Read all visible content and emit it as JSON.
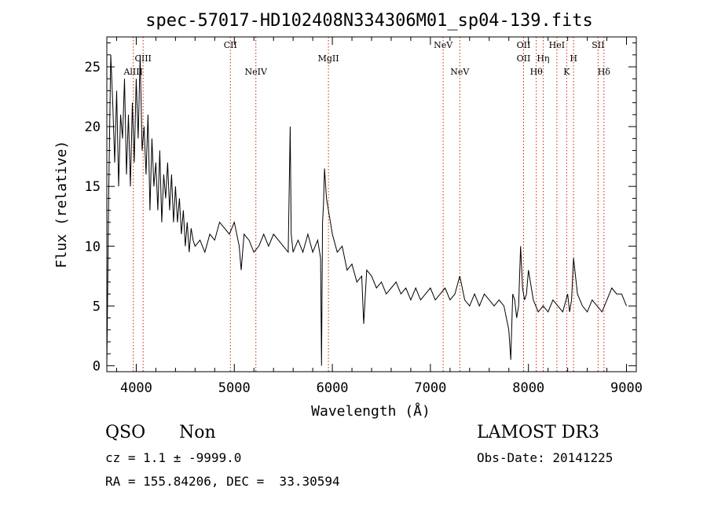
{
  "chart_data": {
    "type": "line",
    "title": "spec-57017-HD102408N334306M01_sp04-139.fits",
    "xlabel": "Wavelength (Å)",
    "ylabel": "Flux (relative)",
    "xlim": [
      3700,
      9100
    ],
    "ylim": [
      -0.5,
      27.5
    ],
    "xticks": [
      4000,
      5000,
      6000,
      7000,
      8000,
      9000
    ],
    "yticks": [
      0,
      5,
      10,
      15,
      20,
      25
    ],
    "grid": false,
    "line_color": "#000000",
    "marker_color": "#cc2200",
    "lines": [
      {
        "label": "AlIII",
        "x": 3970,
        "row": 3
      },
      {
        "label": "CIII",
        "x": 4070,
        "row": 2
      },
      {
        "label": "CII",
        "x": 4960,
        "row": 1
      },
      {
        "label": "NeIV",
        "x": 5220,
        "row": 3
      },
      {
        "label": "MgII",
        "x": 5960,
        "row": 2
      },
      {
        "label": "NeV",
        "x": 7130,
        "row": 1
      },
      {
        "label": "NeV",
        "x": 7300,
        "row": 3
      },
      {
        "label": "OII",
        "x": 7950,
        "row": 1
      },
      {
        "label": "OII",
        "x": 7950,
        "row": 2
      },
      {
        "label": "Hθ",
        "x": 8080,
        "row": 3
      },
      {
        "label": "Hη",
        "x": 8150,
        "row": 2
      },
      {
        "label": "HeI",
        "x": 8290,
        "row": 1
      },
      {
        "label": "K",
        "x": 8390,
        "row": 3
      },
      {
        "label": "H",
        "x": 8460,
        "row": 2
      },
      {
        "label": "SII",
        "x": 8710,
        "row": 1
      },
      {
        "label": "Hδ",
        "x": 8770,
        "row": 3
      }
    ],
    "series": [
      {
        "x": [
          3700,
          3720,
          3740,
          3760,
          3780,
          3800,
          3820,
          3840,
          3860,
          3880,
          3900,
          3920,
          3940,
          3960,
          3980,
          4000,
          4020,
          4040,
          4060,
          4080,
          4100,
          4120,
          4140,
          4160,
          4180,
          4200,
          4220,
          4240,
          4260,
          4280,
          4300,
          4320,
          4340,
          4360,
          4380,
          4400,
          4420,
          4440,
          4460,
          4480,
          4500,
          4520,
          4540,
          4560,
          4580,
          4600,
          4650,
          4700,
          4750,
          4800,
          4850,
          4900,
          4950,
          5000,
          5050,
          5070,
          5100,
          5150,
          5200,
          5250,
          5300,
          5350,
          5400,
          5450,
          5500,
          5550,
          5570,
          5580,
          5600,
          5650,
          5700,
          5750,
          5800,
          5850,
          5880,
          5890,
          5900,
          5910,
          5920,
          5940,
          5960,
          5980,
          6000,
          6050,
          6100,
          6150,
          6200,
          6250,
          6300,
          6320,
          6350,
          6400,
          6450,
          6500,
          6550,
          6600,
          6650,
          6700,
          6750,
          6800,
          6850,
          6900,
          6950,
          7000,
          7050,
          7100,
          7150,
          7200,
          7250,
          7300,
          7350,
          7400,
          7450,
          7500,
          7550,
          7600,
          7650,
          7700,
          7750,
          7800,
          7820,
          7840,
          7860,
          7880,
          7900,
          7920,
          7940,
          7960,
          7980,
          8000,
          8050,
          8100,
          8150,
          8200,
          8250,
          8300,
          8350,
          8400,
          8420,
          8440,
          8460,
          8480,
          8500,
          8550,
          8600,
          8650,
          8700,
          8750,
          8800,
          8850,
          8900,
          8950,
          9000
        ],
        "values": [
          0,
          15,
          26,
          22,
          17,
          23,
          15,
          21,
          19,
          24,
          16,
          21,
          15,
          22,
          17,
          24,
          19,
          26,
          18,
          20,
          16,
          21,
          13,
          19,
          15,
          17,
          13,
          18,
          12,
          16,
          14,
          17,
          13,
          16,
          12,
          15,
          12,
          14,
          11,
          13,
          10,
          12,
          9.5,
          11.5,
          10.5,
          10,
          10.5,
          9.5,
          11,
          10.5,
          12,
          11.5,
          11,
          12,
          10,
          8,
          11,
          10.5,
          9.5,
          10,
          11,
          10,
          11,
          10.5,
          10,
          9.5,
          20,
          11,
          9.5,
          10.5,
          9.5,
          11,
          9.5,
          10.5,
          9,
          0,
          12,
          13.5,
          16.5,
          14,
          13,
          12,
          11,
          9.5,
          10,
          8,
          8.5,
          7,
          7.5,
          3.5,
          8,
          7.5,
          6.5,
          7,
          6,
          6.5,
          7,
          6,
          6.5,
          5.5,
          6.5,
          5.5,
          6,
          6.5,
          5.5,
          6,
          6.5,
          5.5,
          6,
          7.5,
          5.5,
          5,
          6,
          5,
          6,
          5.5,
          5,
          5.5,
          5,
          3,
          0.5,
          6,
          5.5,
          4,
          5,
          10,
          6.5,
          5.5,
          6,
          8,
          5.5,
          4.5,
          5,
          4.5,
          5.5,
          5,
          4.5,
          6,
          4.5,
          5.5,
          9,
          7.5,
          6,
          5,
          4.5,
          5.5,
          5,
          4.5,
          5.5,
          6.5,
          6,
          6,
          5
        ]
      }
    ]
  },
  "info": {
    "class": "QSO",
    "subclass": "Non",
    "survey": "LAMOST DR3",
    "cz": "cz = 1.1 ± -9999.0",
    "obs_date": "Obs-Date: 20141225",
    "radec": "RA = 155.84206, DEC =  33.30594"
  }
}
